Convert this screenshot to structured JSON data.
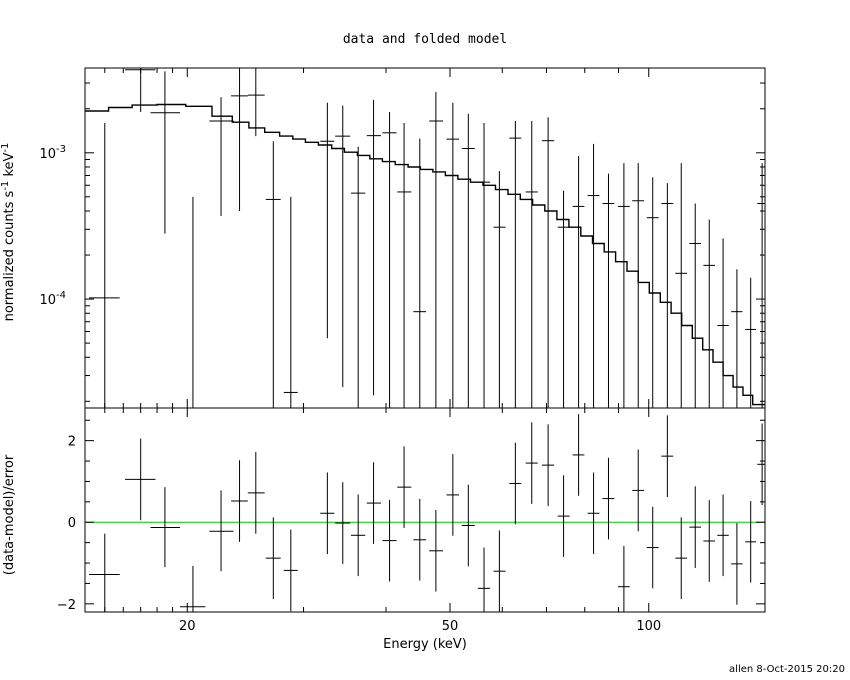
{
  "chart_data": {
    "type": "scatter",
    "title": "data and folded model",
    "xlabel": "Energy (keV)",
    "xscale": "log",
    "xlim": [
      14,
      150
    ],
    "x_tick_labels": [
      "20",
      "50",
      "100"
    ],
    "footer": "allen  8-Oct-2015 20:20",
    "colors": {
      "axes": "#000000",
      "data": "#000000",
      "model": "#000000",
      "zero_line": "#00c800"
    },
    "top_panel": {
      "ylabel_pre": "normalized counts s",
      "ylabel_mid": " keV",
      "ylabel_sup": "-1",
      "yscale": "log",
      "ylim": [
        1.8e-05,
        0.0038
      ],
      "y_tick_labels": [
        {
          "value": 0.001,
          "base": "10",
          "exp": "-3"
        },
        {
          "value": 0.0001,
          "base": "10",
          "exp": "-4"
        }
      ],
      "model_step": [
        [
          14.0,
          0.00193
        ],
        [
          15.2,
          0.00204
        ],
        [
          16.5,
          0.00212
        ],
        [
          18.0,
          0.00214
        ],
        [
          19.9,
          0.00208
        ],
        [
          21.8,
          0.00178
        ],
        [
          23.4,
          0.00162
        ],
        [
          24.8,
          0.00148
        ],
        [
          26.2,
          0.00138
        ],
        [
          27.6,
          0.0013
        ],
        [
          28.9,
          0.00124
        ],
        [
          30.2,
          0.00118
        ],
        [
          31.6,
          0.00113
        ],
        [
          33.1,
          0.00107
        ],
        [
          34.6,
          0.00101
        ],
        [
          36.2,
          0.00096
        ],
        [
          37.8,
          0.00091
        ],
        [
          39.5,
          0.00087
        ],
        [
          41.3,
          0.00083
        ],
        [
          43.2,
          0.0008
        ],
        [
          45.1,
          0.00077
        ],
        [
          47.1,
          0.00074
        ],
        [
          49.2,
          0.0007
        ],
        [
          51.4,
          0.00066
        ],
        [
          53.7,
          0.00063
        ],
        [
          56.1,
          0.0006
        ],
        [
          58.6,
          0.00056
        ],
        [
          61.2,
          0.00052
        ],
        [
          63.9,
          0.00048
        ],
        [
          66.7,
          0.00044
        ],
        [
          69.6,
          0.0004
        ],
        [
          72.6,
          0.00035
        ],
        [
          75.7,
          0.00031
        ],
        [
          78.9,
          0.00027
        ],
        [
          82.2,
          0.00024
        ],
        [
          85.6,
          0.00021
        ],
        [
          89.1,
          0.00018
        ],
        [
          92.7,
          0.000155
        ],
        [
          96.4,
          0.00013
        ],
        [
          100.2,
          0.00011
        ],
        [
          104.1,
          9.5e-05
        ],
        [
          108.1,
          8e-05
        ],
        [
          112.2,
          6.6e-05
        ],
        [
          116.4,
          5.4e-05
        ],
        [
          120.7,
          4.5e-05
        ],
        [
          125.1,
          3.7e-05
        ],
        [
          129.6,
          3e-05
        ],
        [
          134.2,
          2.5e-05
        ],
        [
          138.9,
          2.2e-05
        ],
        [
          143.7,
          1.9e-05
        ],
        [
          150.0,
          1.9e-05
        ]
      ],
      "points": [
        {
          "x": 15.0,
          "xlo": 14.2,
          "xhi": 15.8,
          "y": 0.000102,
          "ylo": 1.8e-05,
          "yhi": 0.0016
        },
        {
          "x": 17.0,
          "xlo": 16.1,
          "xhi": 17.9,
          "y": 0.0037,
          "ylo": 0.0019,
          "yhi": 0.0038
        },
        {
          "x": 18.5,
          "xlo": 17.6,
          "xhi": 19.5,
          "y": 0.00188,
          "ylo": 0.00028,
          "yhi": 0.0036
        },
        {
          "x": 20.4,
          "xlo": 19.5,
          "xhi": 21.3,
          "y": 2.6e-06,
          "ylo": 1.8e-05,
          "yhi": 0.0005
        },
        {
          "x": 22.5,
          "xlo": 21.6,
          "xhi": 23.5,
          "y": 0.00165,
          "ylo": 0.00037,
          "yhi": 0.0024
        },
        {
          "x": 24.0,
          "xlo": 23.3,
          "xhi": 24.7,
          "y": 0.00245,
          "ylo": 0.0004,
          "yhi": 0.0038
        },
        {
          "x": 25.4,
          "xlo": 24.7,
          "xhi": 26.2,
          "y": 0.00248,
          "ylo": 0.0013,
          "yhi": 0.0038
        },
        {
          "x": 27.0,
          "xlo": 26.3,
          "xhi": 27.7,
          "y": 0.00048,
          "ylo": 1.8e-05,
          "yhi": 0.0012
        },
        {
          "x": 28.7,
          "xlo": 28.0,
          "xhi": 29.4,
          "y": 2.3e-05,
          "ylo": 1.8e-05,
          "yhi": 0.0005
        },
        {
          "x": 32.6,
          "xlo": 31.8,
          "xhi": 33.4,
          "y": 0.0012,
          "ylo": 5.4e-05,
          "yhi": 0.0022
        },
        {
          "x": 34.4,
          "xlo": 33.5,
          "xhi": 35.3,
          "y": 0.0013,
          "ylo": 2.5e-05,
          "yhi": 0.0021
        },
        {
          "x": 36.3,
          "xlo": 35.4,
          "xhi": 37.2,
          "y": 0.00053,
          "ylo": 1.8e-05,
          "yhi": 0.0011
        },
        {
          "x": 38.3,
          "xlo": 37.4,
          "xhi": 39.3,
          "y": 0.00131,
          "ylo": 2.2e-05,
          "yhi": 0.0023
        },
        {
          "x": 40.5,
          "xlo": 39.5,
          "xhi": 41.5,
          "y": 0.00137,
          "ylo": 1.8e-05,
          "yhi": 0.0019
        },
        {
          "x": 42.6,
          "xlo": 41.6,
          "xhi": 43.7,
          "y": 0.00054,
          "ylo": 1.8e-05,
          "yhi": 0.0016
        },
        {
          "x": 45.0,
          "xlo": 44.0,
          "xhi": 46.0,
          "y": 8.2e-05,
          "ylo": 1.8e-05,
          "yhi": 0.00125
        },
        {
          "x": 47.6,
          "xlo": 46.5,
          "xhi": 48.8,
          "y": 0.00165,
          "ylo": 1.8e-05,
          "yhi": 0.0026
        },
        {
          "x": 50.5,
          "xlo": 49.4,
          "xhi": 51.6,
          "y": 0.00124,
          "ylo": 1.8e-05,
          "yhi": 0.0022
        },
        {
          "x": 53.3,
          "xlo": 52.1,
          "xhi": 54.5,
          "y": 0.00107,
          "ylo": 1.8e-05,
          "yhi": 0.00185
        },
        {
          "x": 56.3,
          "xlo": 55.1,
          "xhi": 57.5,
          "y": 0.00063,
          "ylo": 1.8e-05,
          "yhi": 0.0016
        },
        {
          "x": 59.4,
          "xlo": 58.2,
          "xhi": 60.7,
          "y": 0.00031,
          "ylo": 1.8e-05,
          "yhi": 0.00075
        },
        {
          "x": 62.8,
          "xlo": 61.5,
          "xhi": 64.1,
          "y": 0.00126,
          "ylo": 1.8e-05,
          "yhi": 0.00165
        },
        {
          "x": 66.5,
          "xlo": 65.1,
          "xhi": 67.9,
          "y": 0.00054,
          "ylo": 1.8e-05,
          "yhi": 0.00165
        },
        {
          "x": 70.4,
          "xlo": 68.9,
          "xhi": 71.9,
          "y": 0.00121,
          "ylo": 1.8e-05,
          "yhi": 0.00175
        },
        {
          "x": 74.3,
          "xlo": 72.8,
          "xhi": 75.9,
          "y": 0.00031,
          "ylo": 1.8e-05,
          "yhi": 0.00055
        },
        {
          "x": 78.3,
          "xlo": 76.7,
          "xhi": 79.9,
          "y": 0.00043,
          "ylo": 1.8e-05,
          "yhi": 0.00095
        },
        {
          "x": 82.5,
          "xlo": 80.8,
          "xhi": 84.2,
          "y": 0.00051,
          "ylo": 1.8e-05,
          "yhi": 0.00115
        },
        {
          "x": 86.9,
          "xlo": 85.1,
          "xhi": 88.7,
          "y": 0.00045,
          "ylo": 1.8e-05,
          "yhi": 0.00072
        },
        {
          "x": 91.7,
          "xlo": 89.8,
          "xhi": 93.6,
          "y": 0.00043,
          "ylo": 1.8e-05,
          "yhi": 0.00085
        },
        {
          "x": 96.4,
          "xlo": 94.4,
          "xhi": 98.4,
          "y": 0.00047,
          "ylo": 1.8e-05,
          "yhi": 0.00085
        },
        {
          "x": 101.4,
          "xlo": 99.3,
          "xhi": 103.5,
          "y": 0.00036,
          "ylo": 1.8e-05,
          "yhi": 0.00068
        },
        {
          "x": 106.7,
          "xlo": 104.5,
          "xhi": 108.9,
          "y": 0.00045,
          "ylo": 1.8e-05,
          "yhi": 0.00062
        },
        {
          "x": 112.0,
          "xlo": 109.7,
          "xhi": 114.3,
          "y": 0.00015,
          "ylo": 1.8e-05,
          "yhi": 0.00085
        },
        {
          "x": 117.6,
          "xlo": 115.2,
          "xhi": 120.0,
          "y": 0.00024,
          "ylo": 1.8e-05,
          "yhi": 0.00045
        },
        {
          "x": 123.5,
          "xlo": 121.0,
          "xhi": 126.0,
          "y": 0.00017,
          "ylo": 1.8e-05,
          "yhi": 0.00035
        },
        {
          "x": 129.6,
          "xlo": 127.0,
          "xhi": 132.2,
          "y": 6.6e-05,
          "ylo": 1.8e-05,
          "yhi": 0.00026
        },
        {
          "x": 136.0,
          "xlo": 133.3,
          "xhi": 138.7,
          "y": 8.2e-05,
          "ylo": 1.8e-05,
          "yhi": 0.00016
        },
        {
          "x": 142.7,
          "xlo": 140.0,
          "xhi": 145.4,
          "y": 6.2e-05,
          "ylo": 1.8e-05,
          "yhi": 0.00014
        },
        {
          "x": 148.5,
          "xlo": 146.0,
          "xhi": 150.0,
          "y": 0.00045,
          "ylo": 1.8e-05,
          "yhi": 0.00085
        }
      ]
    },
    "bottom_panel": {
      "ylabel": "(data-model)/error",
      "ylim": [
        -2.2,
        2.8
      ],
      "y_ticks": [
        -2,
        0,
        2
      ],
      "y_tick_labels": [
        "−2",
        "0",
        "2"
      ],
      "zero_line": 0,
      "points": [
        {
          "x": 15.0,
          "xlo": 14.2,
          "xhi": 15.8,
          "y": -1.28,
          "ylo": -2.2,
          "yhi": -0.28
        },
        {
          "x": 17.0,
          "xlo": 16.1,
          "xhi": 17.9,
          "y": 1.05,
          "ylo": 0.05,
          "yhi": 2.05
        },
        {
          "x": 18.5,
          "xlo": 17.6,
          "xhi": 19.5,
          "y": -0.13,
          "ylo": -1.1,
          "yhi": 0.86
        },
        {
          "x": 20.4,
          "xlo": 19.5,
          "xhi": 21.3,
          "y": -2.07,
          "ylo": -2.2,
          "yhi": -1.07
        },
        {
          "x": 22.5,
          "xlo": 21.6,
          "xhi": 23.5,
          "y": -0.22,
          "ylo": -1.2,
          "yhi": 0.78
        },
        {
          "x": 24.0,
          "xlo": 23.3,
          "xhi": 24.7,
          "y": 0.52,
          "ylo": -0.48,
          "yhi": 1.52
        },
        {
          "x": 25.4,
          "xlo": 24.7,
          "xhi": 26.2,
          "y": 0.72,
          "ylo": -0.28,
          "yhi": 1.72
        },
        {
          "x": 27.0,
          "xlo": 26.3,
          "xhi": 27.7,
          "y": -0.88,
          "ylo": -1.88,
          "yhi": 0.12
        },
        {
          "x": 28.7,
          "xlo": 28.0,
          "xhi": 29.4,
          "y": -1.18,
          "ylo": -2.18,
          "yhi": -0.18
        },
        {
          "x": 32.6,
          "xlo": 31.8,
          "xhi": 33.4,
          "y": 0.22,
          "ylo": -0.78,
          "yhi": 1.22
        },
        {
          "x": 34.4,
          "xlo": 33.5,
          "xhi": 35.3,
          "y": -0.02,
          "ylo": -1.02,
          "yhi": 0.98
        },
        {
          "x": 36.3,
          "xlo": 35.4,
          "xhi": 37.2,
          "y": -0.32,
          "ylo": -1.32,
          "yhi": 0.68
        },
        {
          "x": 38.3,
          "xlo": 37.4,
          "xhi": 39.3,
          "y": 0.47,
          "ylo": -0.53,
          "yhi": 1.47
        },
        {
          "x": 40.5,
          "xlo": 39.5,
          "xhi": 41.5,
          "y": -0.45,
          "ylo": -1.45,
          "yhi": 0.55
        },
        {
          "x": 42.6,
          "xlo": 41.6,
          "xhi": 43.7,
          "y": 0.86,
          "ylo": -0.14,
          "yhi": 1.86
        },
        {
          "x": 45.0,
          "xlo": 44.0,
          "xhi": 46.0,
          "y": -0.43,
          "ylo": -1.43,
          "yhi": 0.57
        },
        {
          "x": 47.6,
          "xlo": 46.5,
          "xhi": 48.8,
          "y": -0.7,
          "ylo": -1.7,
          "yhi": 0.3
        },
        {
          "x": 50.5,
          "xlo": 49.4,
          "xhi": 51.6,
          "y": 0.67,
          "ylo": -0.33,
          "yhi": 1.67
        },
        {
          "x": 53.3,
          "xlo": 52.1,
          "xhi": 54.5,
          "y": -0.08,
          "ylo": -1.08,
          "yhi": 0.92
        },
        {
          "x": 56.3,
          "xlo": 55.1,
          "xhi": 57.5,
          "y": -1.62,
          "ylo": -2.2,
          "yhi": -0.62
        },
        {
          "x": 59.4,
          "xlo": 58.2,
          "xhi": 60.7,
          "y": -1.2,
          "ylo": -2.2,
          "yhi": -0.2
        },
        {
          "x": 62.8,
          "xlo": 61.5,
          "xhi": 64.1,
          "y": 0.95,
          "ylo": -0.05,
          "yhi": 1.95
        },
        {
          "x": 66.5,
          "xlo": 65.1,
          "xhi": 67.9,
          "y": 1.45,
          "ylo": 0.45,
          "yhi": 2.45
        },
        {
          "x": 70.4,
          "xlo": 68.9,
          "xhi": 71.9,
          "y": 1.4,
          "ylo": 0.4,
          "yhi": 2.4
        },
        {
          "x": 74.3,
          "xlo": 72.8,
          "xhi": 75.9,
          "y": 0.15,
          "ylo": -0.85,
          "yhi": 1.15
        },
        {
          "x": 78.3,
          "xlo": 76.7,
          "xhi": 79.9,
          "y": 1.65,
          "ylo": 0.65,
          "yhi": 2.65
        },
        {
          "x": 82.5,
          "xlo": 80.8,
          "xhi": 84.2,
          "y": 0.22,
          "ylo": -0.78,
          "yhi": 1.22
        },
        {
          "x": 86.9,
          "xlo": 85.1,
          "xhi": 88.7,
          "y": 0.58,
          "ylo": -0.42,
          "yhi": 1.58
        },
        {
          "x": 91.7,
          "xlo": 89.8,
          "xhi": 93.6,
          "y": -1.58,
          "ylo": -2.2,
          "yhi": -0.58
        },
        {
          "x": 96.4,
          "xlo": 94.4,
          "xhi": 98.4,
          "y": 0.78,
          "ylo": -0.22,
          "yhi": 1.78
        },
        {
          "x": 101.4,
          "xlo": 99.3,
          "xhi": 103.5,
          "y": -0.62,
          "ylo": -1.62,
          "yhi": 0.38
        },
        {
          "x": 106.7,
          "xlo": 104.5,
          "xhi": 108.9,
          "y": 1.62,
          "ylo": 0.62,
          "yhi": 2.62
        },
        {
          "x": 112.0,
          "xlo": 109.7,
          "xhi": 114.3,
          "y": -0.88,
          "ylo": -1.88,
          "yhi": 0.12
        },
        {
          "x": 117.6,
          "xlo": 115.2,
          "xhi": 120.0,
          "y": -0.12,
          "ylo": -1.12,
          "yhi": 0.88
        },
        {
          "x": 123.5,
          "xlo": 121.0,
          "xhi": 126.0,
          "y": -0.46,
          "ylo": -1.46,
          "yhi": 0.54
        },
        {
          "x": 129.6,
          "xlo": 127.0,
          "xhi": 132.2,
          "y": -0.32,
          "ylo": -1.32,
          "yhi": 0.68
        },
        {
          "x": 136.0,
          "xlo": 133.3,
          "xhi": 138.7,
          "y": -1.02,
          "ylo": -2.02,
          "yhi": -0.02
        },
        {
          "x": 142.7,
          "xlo": 140.0,
          "xhi": 145.4,
          "y": -0.48,
          "ylo": -1.48,
          "yhi": 0.52
        },
        {
          "x": 148.5,
          "xlo": 146.0,
          "xhi": 150.0,
          "y": 1.42,
          "ylo": 0.42,
          "yhi": 2.42
        }
      ]
    }
  }
}
